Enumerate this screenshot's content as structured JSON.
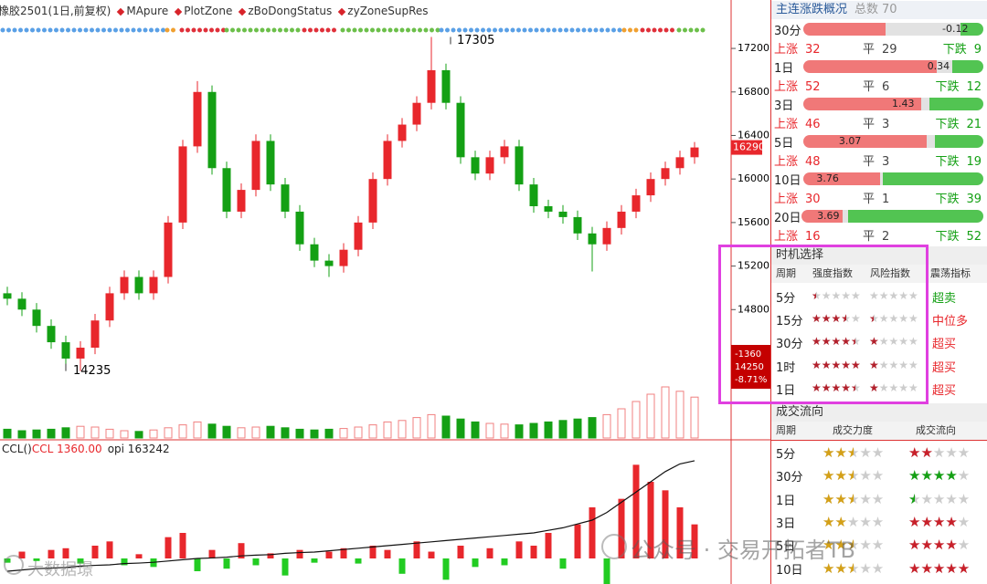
{
  "header": {
    "title": "橡胶2501(1日,前复权)",
    "indicators": [
      "MApure",
      "PlotZone",
      "zBoDongStatus",
      "zyZoneSupRes"
    ]
  },
  "chart": {
    "type": "candlestick",
    "candles": [
      [
        14950,
        15010,
        14840,
        14900
      ],
      [
        14900,
        14960,
        14740,
        14800
      ],
      [
        14800,
        14860,
        14590,
        14650
      ],
      [
        14650,
        14710,
        14440,
        14500
      ],
      [
        14500,
        14560,
        14290,
        14350
      ],
      [
        14350,
        14510,
        14235,
        14450
      ],
      [
        14450,
        14760,
        14390,
        14700
      ],
      [
        14700,
        15010,
        14640,
        14950
      ],
      [
        14950,
        15160,
        14890,
        15100
      ],
      [
        15100,
        15160,
        14890,
        14950
      ],
      [
        14950,
        15160,
        14890,
        15100
      ],
      [
        15100,
        15660,
        15040,
        15600
      ],
      [
        15600,
        16360,
        15540,
        16300
      ],
      [
        16300,
        16900,
        16240,
        16800
      ],
      [
        16800,
        16860,
        16040,
        16100
      ],
      [
        16100,
        16160,
        15640,
        15700
      ],
      [
        15700,
        15960,
        15640,
        15900
      ],
      [
        15900,
        16410,
        15840,
        16350
      ],
      [
        16350,
        16410,
        15890,
        15950
      ],
      [
        15950,
        16010,
        15640,
        15700
      ],
      [
        15700,
        15760,
        15340,
        15400
      ],
      [
        15400,
        15460,
        15190,
        15250
      ],
      [
        15250,
        15310,
        15100,
        15200
      ],
      [
        15200,
        15410,
        15140,
        15350
      ],
      [
        15350,
        15660,
        15290,
        15600
      ],
      [
        15600,
        16060,
        15540,
        16000
      ],
      [
        16000,
        16410,
        15940,
        16350
      ],
      [
        16350,
        16560,
        16290,
        16500
      ],
      [
        16500,
        16760,
        16440,
        16700
      ],
      [
        16700,
        17305,
        16640,
        17000
      ],
      [
        17000,
        17060,
        16640,
        16700
      ],
      [
        16700,
        16760,
        16140,
        16200
      ],
      [
        16200,
        16260,
        15990,
        16050
      ],
      [
        16050,
        16260,
        15990,
        16200
      ],
      [
        16200,
        16360,
        16140,
        16300
      ],
      [
        16300,
        16360,
        15890,
        15950
      ],
      [
        15950,
        16010,
        15690,
        15750
      ],
      [
        15750,
        15810,
        15640,
        15700
      ],
      [
        15700,
        15760,
        15590,
        15650
      ],
      [
        15650,
        15710,
        15440,
        15500
      ],
      [
        15500,
        15560,
        15150,
        15400
      ],
      [
        15400,
        15610,
        15340,
        15550
      ],
      [
        15550,
        15760,
        15490,
        15700
      ],
      [
        15700,
        15910,
        15640,
        15850
      ],
      [
        15850,
        16060,
        15790,
        16000
      ],
      [
        16000,
        16160,
        15940,
        16100
      ],
      [
        16100,
        16260,
        16040,
        16200
      ],
      [
        16200,
        16340,
        16140,
        16290
      ]
    ],
    "ylim": [
      13620,
      17645
    ],
    "yticks": [
      14800,
      15200,
      15600,
      16000,
      16400,
      16800,
      17200
    ],
    "up_color": "#e8272c",
    "down_color": "#14a014",
    "volume": [
      60,
      50,
      55,
      60,
      70,
      80,
      75,
      60,
      50,
      45,
      55,
      70,
      90,
      110,
      95,
      80,
      70,
      75,
      80,
      70,
      60,
      55,
      60,
      65,
      75,
      90,
      110,
      120,
      140,
      160,
      150,
      130,
      110,
      100,
      95,
      90,
      100,
      110,
      120,
      130,
      140,
      160,
      200,
      250,
      300,
      350,
      320,
      280
    ],
    "volume_ylim": [
      0,
      500
    ],
    "last_price": 16290,
    "high_label": 17305,
    "low_label": 14235,
    "range_box": {
      "change": -1360,
      "price": 14250,
      "pct": "-8.71%"
    }
  },
  "sub_chart": {
    "name": "CCL()",
    "ccl_label": "CCL 1360.00",
    "opi_label": "opi 163242",
    "ccl": [
      -5,
      8,
      -3,
      10,
      12,
      -6,
      15,
      20,
      -8,
      5,
      -10,
      25,
      30,
      -15,
      10,
      -12,
      18,
      -8,
      6,
      -20,
      10,
      -5,
      8,
      12,
      -6,
      15,
      10,
      -18,
      20,
      8,
      -25,
      15,
      -10,
      12,
      -8,
      20,
      15,
      30,
      -12,
      40,
      60,
      -30,
      70,
      110,
      90,
      80,
      60,
      40
    ],
    "ccl_ylim": [
      -30,
      120
    ],
    "up_color": "#e8272c",
    "down_color": "#22cc22",
    "opi": [
      120000,
      120500,
      121000,
      121200,
      121500,
      122000,
      122300,
      122500,
      123000,
      123200,
      123500,
      124000,
      124500,
      125000,
      125200,
      125500,
      126000,
      126300,
      126500,
      127000,
      127300,
      127500,
      128000,
      128500,
      129000,
      129500,
      130000,
      130500,
      131000,
      131500,
      132000,
      132500,
      133000,
      133500,
      134000,
      134500,
      135000,
      136000,
      137000,
      138500,
      140000,
      143000,
      147000,
      151000,
      155000,
      159000,
      162000,
      163242
    ],
    "opi_ylim": [
      115000,
      165000
    ]
  },
  "overview": {
    "title": "主连涨跌概况",
    "total_label": "总数",
    "total": 70,
    "labels": {
      "up": "上涨",
      "flat": "平",
      "down": "下跌"
    },
    "rows": [
      {
        "period": "30分",
        "value": -0.12,
        "up": 32,
        "flat": 29,
        "down": 9
      },
      {
        "period": "1日",
        "value": 0.34,
        "up": 52,
        "flat": 6,
        "down": 12
      },
      {
        "period": "3日",
        "value": 1.43,
        "up": 46,
        "flat": 3,
        "down": 21
      },
      {
        "period": "5日",
        "value": 3.07,
        "up": 48,
        "flat": 3,
        "down": 19
      },
      {
        "period": "10日",
        "value": 3.76,
        "up": 30,
        "flat": 1,
        "down": 39
      },
      {
        "period": "20日",
        "value": 3.69,
        "up": 16,
        "flat": 2,
        "down": 52
      }
    ]
  },
  "timing": {
    "title": "时机选择",
    "columns": [
      "周期",
      "强度指数",
      "风险指数",
      "震荡指标"
    ],
    "star_color": "#b3202c",
    "rows": [
      {
        "period": "5分",
        "strength": 0.5,
        "risk": 0,
        "signal": "超卖",
        "signal_color": "#14a014"
      },
      {
        "period": "15分",
        "strength": 3.5,
        "risk": 0.5,
        "signal": "中位多",
        "signal_color": "#e8272c"
      },
      {
        "period": "30分",
        "strength": 4.5,
        "risk": 1,
        "signal": "超买",
        "signal_color": "#e8272c"
      },
      {
        "period": "1时",
        "strength": 5,
        "risk": 1,
        "signal": "超买",
        "signal_color": "#e8272c"
      },
      {
        "period": "1日",
        "strength": 4.5,
        "risk": 1,
        "signal": "超买",
        "signal_color": "#e8272c"
      }
    ]
  },
  "flow": {
    "title": "成交流向",
    "columns": [
      "周期",
      "成交力度",
      "成交流向"
    ],
    "force_color": "#d4a017",
    "rows": [
      {
        "period": "5分",
        "force": 2.5,
        "direction": 2,
        "direction_color": "#c8202a"
      },
      {
        "period": "30分",
        "force": 2.5,
        "direction": 4,
        "direction_color": "#14a014"
      },
      {
        "period": "1日",
        "force": 2.5,
        "direction": 0.5,
        "direction_color": "#14a014"
      },
      {
        "period": "3日",
        "force": 2,
        "direction": 4,
        "direction_color": "#c8202a"
      },
      {
        "period": "5日",
        "force": 2.5,
        "direction": 4,
        "direction_color": "#c8202a"
      },
      {
        "period": "10日",
        "force": 2.5,
        "direction": 5,
        "direction_color": "#c8202a"
      }
    ]
  },
  "watermark": {
    "text": "公众号 · 交易开拓者TB",
    "source": "大数据璟"
  }
}
